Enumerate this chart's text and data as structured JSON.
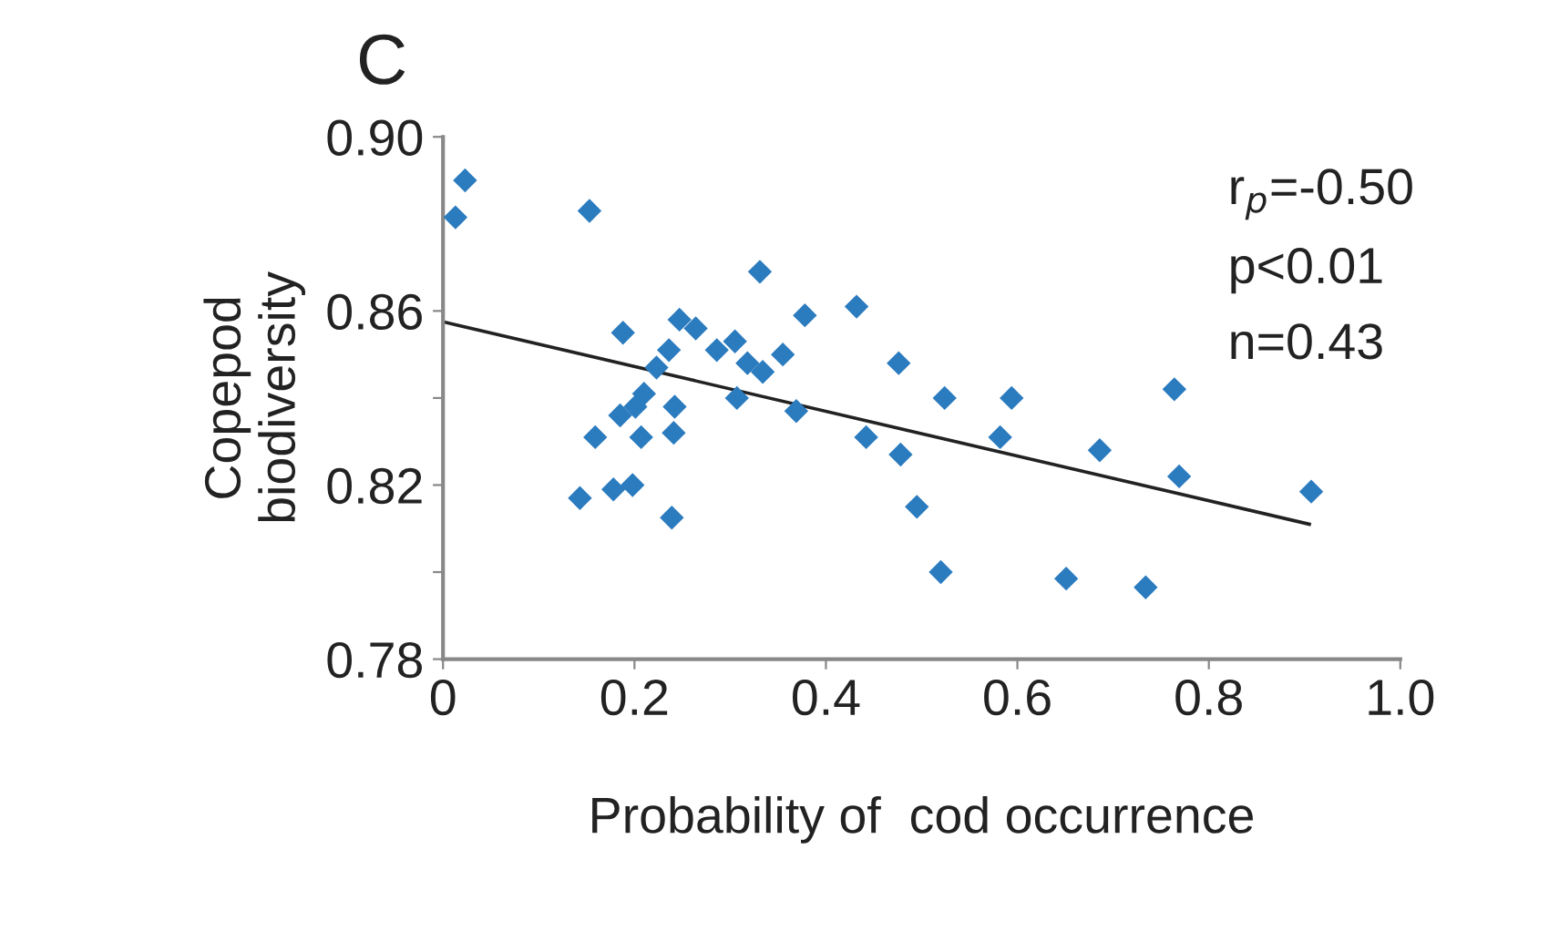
{
  "chart_data": {
    "type": "scatter",
    "title": "C",
    "xlabel": "Probability of  cod occurrence",
    "ylabel": "Copepod\nbiodiversity",
    "xlim": [
      0,
      1.0
    ],
    "ylim": [
      0.78,
      0.9
    ],
    "xticks": [
      0,
      0.2,
      0.4,
      0.6,
      0.8,
      {
        "value": 1.0,
        "label": "1.0"
      }
    ],
    "yticks": [
      0.78,
      {
        "value": 0.8,
        "label": null
      },
      0.82,
      {
        "value": 0.84,
        "label": null
      },
      0.86,
      {
        "value": 0.9,
        "label": "0.90"
      }
    ],
    "grid": false,
    "annotations": [
      "r$_{p}$=-0.50",
      "p<0.01",
      "n=0.43"
    ],
    "series": [
      {
        "marker": "diamond",
        "color": "#2b7bbf",
        "x": [
          0.013,
          0.023,
          0.153,
          0.331,
          0.188,
          0.247,
          0.264,
          0.236,
          0.286,
          0.305,
          0.318,
          0.334,
          0.355,
          0.378,
          0.432,
          0.476,
          0.223,
          0.21,
          0.201,
          0.185,
          0.242,
          0.207,
          0.159,
          0.241,
          0.307,
          0.369,
          0.143,
          0.178,
          0.198,
          0.239,
          0.442,
          0.478,
          0.495,
          0.52,
          0.524,
          0.594,
          0.582,
          0.651,
          0.686,
          0.734,
          0.764,
          0.769,
          0.907
        ],
        "values": [
          0.8815,
          0.89,
          0.883,
          0.869,
          0.855,
          0.858,
          0.856,
          0.851,
          0.851,
          0.853,
          0.848,
          0.846,
          0.85,
          0.859,
          0.861,
          0.848,
          0.847,
          0.841,
          0.838,
          0.836,
          0.838,
          0.831,
          0.831,
          0.832,
          0.84,
          0.837,
          0.817,
          0.819,
          0.82,
          0.8125,
          0.831,
          0.827,
          0.815,
          0.8,
          0.84,
          0.84,
          0.831,
          0.7985,
          0.828,
          0.7965,
          0.842,
          0.822,
          0.8185
        ]
      },
      {
        "type": "line",
        "color": "#222222",
        "x": [
          0,
          0.905
        ],
        "values": [
          0.8575,
          0.811
        ]
      }
    ]
  }
}
